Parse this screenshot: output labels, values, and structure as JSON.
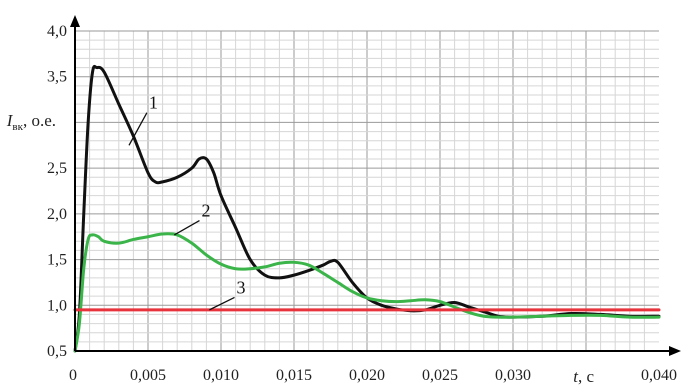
{
  "chart_data": {
    "type": "line",
    "xlabel": {
      "var": "t",
      "unit": ", с"
    },
    "ylabel": {
      "var": "I",
      "sub": "вк",
      "unit": ", о.е."
    },
    "xlim": [
      0,
      0.04
    ],
    "ylim": [
      0.5,
      4.0
    ],
    "grid": true,
    "x_ticks": [
      {
        "v": 0.005,
        "label": "0,005"
      },
      {
        "v": 0.01,
        "label": "0,010"
      },
      {
        "v": 0.015,
        "label": "0,015"
      },
      {
        "v": 0.02,
        "label": "0,020"
      },
      {
        "v": 0.025,
        "label": "0,025"
      },
      {
        "v": 0.03,
        "label": "0,030"
      },
      {
        "v": 0.04,
        "label": "0,040"
      }
    ],
    "x_origin_label": "0",
    "y_ticks": [
      {
        "v": 0.5,
        "label": "0,5"
      },
      {
        "v": 1.0,
        "label": "1,0"
      },
      {
        "v": 1.5,
        "label": "1,5"
      },
      {
        "v": 2.0,
        "label": "2,0"
      },
      {
        "v": 2.5,
        "label": "2,5"
      },
      {
        "v": 3.5,
        "label": "3,5"
      },
      {
        "v": 4.0,
        "label": "4,0"
      }
    ],
    "series": [
      {
        "name": "1",
        "color": "#111111",
        "label_at": [
          0.0052,
          3.15
        ],
        "leader_to": [
          0.0037,
          2.75
        ],
        "x": [
          0,
          0.0003,
          0.0006,
          0.0009,
          0.0012,
          0.0015,
          0.002,
          0.003,
          0.004,
          0.005,
          0.0055,
          0.006,
          0.007,
          0.008,
          0.0085,
          0.009,
          0.0095,
          0.01,
          0.011,
          0.012,
          0.013,
          0.014,
          0.015,
          0.016,
          0.017,
          0.0175,
          0.018,
          0.019,
          0.02,
          0.021,
          0.022,
          0.023,
          0.024,
          0.025,
          0.026,
          0.027,
          0.028,
          0.029,
          0.03,
          0.032,
          0.034,
          0.036,
          0.038,
          0.04
        ],
        "y": [
          0.5,
          0.9,
          2.0,
          3.0,
          3.55,
          3.6,
          3.55,
          3.2,
          2.85,
          2.45,
          2.35,
          2.35,
          2.4,
          2.5,
          2.6,
          2.6,
          2.45,
          2.2,
          1.85,
          1.5,
          1.33,
          1.3,
          1.33,
          1.38,
          1.44,
          1.48,
          1.47,
          1.25,
          1.08,
          1.0,
          0.96,
          0.94,
          0.95,
          1.0,
          1.03,
          0.98,
          0.93,
          0.88,
          0.87,
          0.88,
          0.91,
          0.9,
          0.88,
          0.88
        ]
      },
      {
        "name": "2",
        "color": "#3bb54a",
        "label_at": [
          0.0088,
          1.97
        ],
        "leader_to": [
          0.0068,
          1.77
        ],
        "x": [
          0,
          0.0003,
          0.0006,
          0.0009,
          0.0012,
          0.0016,
          0.002,
          0.003,
          0.004,
          0.005,
          0.006,
          0.007,
          0.008,
          0.009,
          0.01,
          0.011,
          0.012,
          0.013,
          0.014,
          0.015,
          0.016,
          0.017,
          0.018,
          0.019,
          0.02,
          0.021,
          0.022,
          0.023,
          0.024,
          0.025,
          0.026,
          0.027,
          0.028,
          0.029,
          0.03,
          0.032,
          0.034,
          0.036,
          0.038,
          0.04
        ],
        "y": [
          0.5,
          0.8,
          1.4,
          1.72,
          1.77,
          1.75,
          1.7,
          1.68,
          1.72,
          1.75,
          1.78,
          1.77,
          1.68,
          1.55,
          1.45,
          1.4,
          1.4,
          1.42,
          1.46,
          1.47,
          1.44,
          1.35,
          1.25,
          1.15,
          1.08,
          1.05,
          1.04,
          1.05,
          1.06,
          1.04,
          0.98,
          0.92,
          0.88,
          0.87,
          0.87,
          0.88,
          0.89,
          0.89,
          0.87,
          0.87
        ]
      },
      {
        "name": "3",
        "color": "#e8323c",
        "label_at": [
          0.0112,
          1.13
        ],
        "leader_to": [
          0.0092,
          0.95
        ],
        "x": [
          0,
          0.04
        ],
        "y": [
          0.95,
          0.95
        ]
      }
    ]
  }
}
